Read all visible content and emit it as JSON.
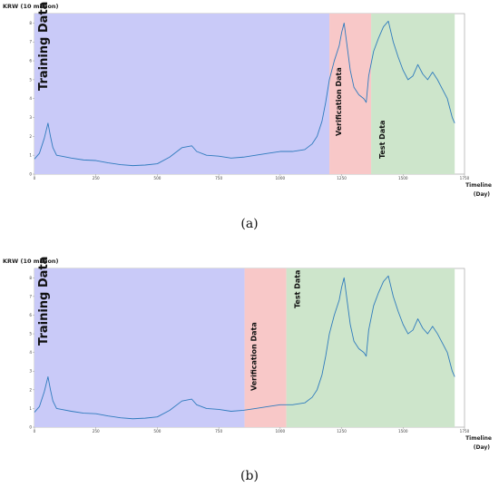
{
  "chart_data": [
    {
      "type": "line",
      "ylabel": "KRW (10 million)",
      "xlabel": "Timeline",
      "xlabel_unit": "(Day)",
      "caption": "(a)",
      "xlim": [
        0,
        1750
      ],
      "ylim": [
        0,
        8.5
      ],
      "x_ticks": [
        0,
        250,
        500,
        750,
        1000,
        1250,
        1500,
        1750
      ],
      "y_ticks": [
        0,
        1,
        2,
        3,
        4,
        5,
        6,
        7,
        8
      ],
      "grid": false,
      "series": [
        {
          "x": [
            0,
            20,
            40,
            55,
            65,
            75,
            90,
            110,
            150,
            200,
            250,
            300,
            350,
            400,
            450,
            500,
            550,
            600,
            640,
            660,
            700,
            750,
            800,
            850,
            900,
            950,
            1000,
            1050,
            1100,
            1130,
            1150,
            1170,
            1185,
            1200,
            1220,
            1240,
            1250,
            1260,
            1270,
            1285,
            1300,
            1320,
            1340,
            1350,
            1360,
            1380,
            1400,
            1420,
            1440,
            1460,
            1480,
            1500,
            1520,
            1540,
            1560,
            1580,
            1600,
            1620,
            1640,
            1660,
            1680,
            1700,
            1710
          ],
          "values": [
            0.8,
            1.1,
            1.9,
            2.7,
            2.0,
            1.4,
            1.0,
            0.95,
            0.85,
            0.75,
            0.72,
            0.6,
            0.5,
            0.45,
            0.48,
            0.55,
            0.9,
            1.4,
            1.5,
            1.2,
            1.0,
            0.95,
            0.85,
            0.9,
            1.0,
            1.1,
            1.2,
            1.2,
            1.3,
            1.6,
            2.0,
            2.8,
            3.8,
            5.0,
            6.0,
            6.8,
            7.5,
            8.0,
            7.0,
            5.5,
            4.6,
            4.2,
            4.0,
            3.8,
            5.2,
            6.5,
            7.2,
            7.8,
            8.1,
            7.0,
            6.2,
            5.5,
            5.0,
            5.2,
            5.8,
            5.3,
            5.0,
            5.4,
            5.0,
            4.5,
            4.0,
            3.0,
            2.7
          ]
        }
      ],
      "regions": [
        {
          "label": "Training Data",
          "x_start": 0,
          "x_end": 1200,
          "color": "#c9caf8"
        },
        {
          "label": "Verification Data",
          "x_start": 1200,
          "x_end": 1370,
          "color": "#f8c8c8"
        },
        {
          "label": "Test Data",
          "x_start": 1370,
          "x_end": 1710,
          "color": "#cde5cb"
        }
      ]
    },
    {
      "type": "line",
      "ylabel": "KRW (10 million)",
      "xlabel": "Timeline",
      "xlabel_unit": "(Day)",
      "caption": "(b)",
      "xlim": [
        0,
        1750
      ],
      "ylim": [
        0,
        8.5
      ],
      "x_ticks": [
        0,
        250,
        500,
        750,
        1000,
        1250,
        1500,
        1750
      ],
      "y_ticks": [
        0,
        1,
        2,
        3,
        4,
        5,
        6,
        7,
        8
      ],
      "grid": false,
      "series": [
        {
          "x": [
            0,
            20,
            40,
            55,
            65,
            75,
            90,
            110,
            150,
            200,
            250,
            300,
            350,
            400,
            450,
            500,
            550,
            600,
            640,
            660,
            700,
            750,
            800,
            850,
            900,
            950,
            1000,
            1050,
            1100,
            1130,
            1150,
            1170,
            1185,
            1200,
            1220,
            1240,
            1250,
            1260,
            1270,
            1285,
            1300,
            1320,
            1340,
            1350,
            1360,
            1380,
            1400,
            1420,
            1440,
            1460,
            1480,
            1500,
            1520,
            1540,
            1560,
            1580,
            1600,
            1620,
            1640,
            1660,
            1680,
            1700,
            1710
          ],
          "values": [
            0.8,
            1.1,
            1.9,
            2.7,
            2.0,
            1.4,
            1.0,
            0.95,
            0.85,
            0.75,
            0.72,
            0.6,
            0.5,
            0.45,
            0.48,
            0.55,
            0.9,
            1.4,
            1.5,
            1.2,
            1.0,
            0.95,
            0.85,
            0.9,
            1.0,
            1.1,
            1.2,
            1.2,
            1.3,
            1.6,
            2.0,
            2.8,
            3.8,
            5.0,
            6.0,
            6.8,
            7.5,
            8.0,
            7.0,
            5.5,
            4.6,
            4.2,
            4.0,
            3.8,
            5.2,
            6.5,
            7.2,
            7.8,
            8.1,
            7.0,
            6.2,
            5.5,
            5.0,
            5.2,
            5.8,
            5.3,
            5.0,
            5.4,
            5.0,
            4.5,
            4.0,
            3.0,
            2.7
          ]
        }
      ],
      "regions": [
        {
          "label": "Training Data",
          "x_start": 0,
          "x_end": 855,
          "color": "#c9caf8"
        },
        {
          "label": "Verification Data",
          "x_start": 855,
          "x_end": 1025,
          "color": "#f8c8c8"
        },
        {
          "label": "Test Data",
          "x_start": 1025,
          "x_end": 1710,
          "color": "#cde5cb"
        }
      ]
    }
  ],
  "colors": {
    "line": "#2f7bbd",
    "axis": "#999999"
  }
}
